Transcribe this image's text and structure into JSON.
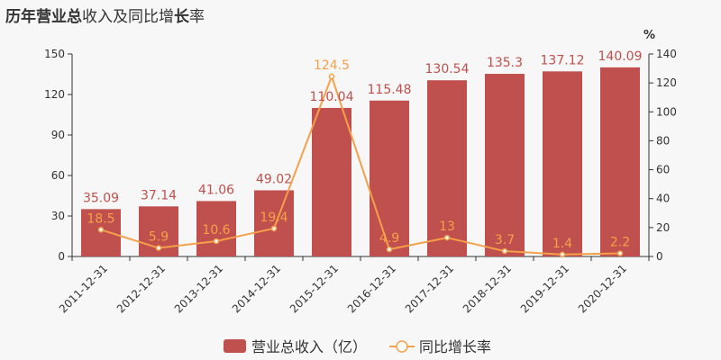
{
  "title_parts": [
    {
      "text": "历年",
      "bold": true
    },
    {
      "text": "营业总",
      "bold": true
    },
    {
      "text": "收入及同比增",
      "bold": false
    },
    {
      "text": "长",
      "bold": true
    },
    {
      "text": "率",
      "bold": false
    }
  ],
  "chart_data": {
    "type": "bar",
    "categories": [
      "2011-12-31",
      "2012-12-31",
      "2013-12-31",
      "2014-12-31",
      "2015-12-31",
      "2016-12-31",
      "2017-12-31",
      "2018-12-31",
      "2019-12-31",
      "2020-12-31"
    ],
    "series": [
      {
        "name": "营业总收入（亿）",
        "type": "bar",
        "axis": "left",
        "color": "#c0504d",
        "values": [
          35.09,
          37.14,
          41.06,
          49.02,
          110.04,
          115.48,
          130.54,
          135.3,
          137.12,
          140.09
        ],
        "labels": [
          "35.09",
          "37.14",
          "41.06",
          "49.02",
          "110.04",
          "115.48",
          "130.54",
          "135.3",
          "137.12",
          "140.09"
        ]
      },
      {
        "name": "同比增长率",
        "type": "line",
        "axis": "right",
        "color": "#f5a04a",
        "values": [
          18.5,
          5.9,
          10.6,
          19.4,
          124.5,
          4.9,
          13,
          3.7,
          1.4,
          2.2
        ],
        "labels": [
          "18.5",
          "5.9",
          "10.6",
          "19.4",
          "124.5",
          "4.9",
          "13",
          "3.7",
          "1.4",
          "2.2"
        ]
      }
    ],
    "y_left": {
      "min": 0,
      "max": 150,
      "ticks": [
        "0",
        "30",
        "60",
        "90",
        "120",
        "150"
      ]
    },
    "y_right": {
      "min": 0,
      "max": 140,
      "ticks": [
        "0",
        "20",
        "40",
        "60",
        "80",
        "100",
        "120",
        "140"
      ],
      "unit": "%"
    },
    "grid": false,
    "legend": "bottom-center"
  }
}
